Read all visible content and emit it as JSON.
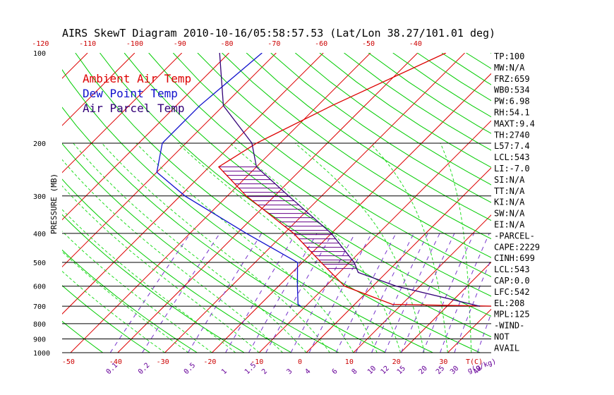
{
  "title": "AIRS SkewT Diagram 2010-10-16/05:58:57.53 (Lat/Lon 38.27/101.01 deg)",
  "colors": {
    "ambient": "#dd0000",
    "dewpoint": "#1010cc",
    "parcel": "#330077",
    "isotherm": "#dd0000",
    "dry_adiabat": "#00cc00",
    "moist_adiabat": "#22dd22",
    "mixing_ratio": "#7733cc",
    "hatch": "#660088",
    "isobar": "#000000"
  },
  "legend": [
    {
      "label": "Ambient Air Temp",
      "color": "#dd0000"
    },
    {
      "label": "Dew Point Temp",
      "color": "#1010cc"
    },
    {
      "label": "Air Parcel Temp",
      "color": "#330077"
    }
  ],
  "chart_data": {
    "type": "line",
    "title": "AIRS SkewT Diagram 2010-10-16/05:58:57.53 (Lat/Lon 38.27/101.01 deg)",
    "ylabel": "PRESSURE (MB)",
    "xlabel": "T(C)",
    "mixing_ratio_unit": "g(g/kg)",
    "pressure_ticks": [
      100,
      200,
      300,
      400,
      500,
      600,
      700,
      800,
      900,
      1000
    ],
    "top_temp_ticks": [
      -120,
      -110,
      -100,
      -90,
      -80,
      -70,
      -60,
      -50,
      -40
    ],
    "bottom_temp_ticks": [
      -50,
      -40,
      -30,
      -20,
      -10,
      0,
      10,
      20,
      30
    ],
    "mixing_ratio_ticks": [
      "0.1",
      "0.2",
      "0.5",
      "1",
      "1.5",
      "2",
      "3",
      "4",
      "6",
      "8",
      "10",
      "12",
      "15",
      "20",
      "25",
      "30",
      "40"
    ],
    "series": [
      {
        "name": "Ambient Air Temp",
        "points": [
          [
            100,
            -34
          ],
          [
            150,
            -47
          ],
          [
            200,
            -55
          ],
          [
            240,
            -58
          ],
          [
            300,
            -46
          ],
          [
            400,
            -28
          ],
          [
            500,
            -16
          ],
          [
            600,
            -6
          ],
          [
            690,
            8
          ],
          [
            700,
            31
          ]
        ]
      },
      {
        "name": "Dew Point Temp",
        "points": [
          [
            100,
            -73
          ],
          [
            150,
            -75
          ],
          [
            200,
            -75
          ],
          [
            250,
            -70
          ],
          [
            300,
            -59
          ],
          [
            400,
            -38
          ],
          [
            500,
            -21
          ],
          [
            600,
            -16
          ],
          [
            690,
            -12
          ],
          [
            700,
            -11
          ]
        ]
      },
      {
        "name": "Air Parcel Temp",
        "points": [
          [
            100,
            -82
          ],
          [
            150,
            -70
          ],
          [
            200,
            -56
          ],
          [
            240,
            -50
          ],
          [
            300,
            -37
          ],
          [
            400,
            -20
          ],
          [
            500,
            -9
          ],
          [
            540,
            -6
          ],
          [
            600,
            5
          ],
          [
            700,
            27
          ]
        ]
      }
    ],
    "indices": [
      "TP:100",
      "MW:N/A",
      "FRZ:659",
      "WB0:534",
      "PW:6.98",
      "RH:54.1",
      "MAXT:9.4",
      "TH:2740",
      "L57:7.4",
      "LCL:543",
      "LI:-7.0",
      "SI:N/A",
      "TT:N/A",
      "KI:N/A",
      "SW:N/A",
      "EI:N/A",
      "-PARCEL-",
      "CAPE:2229",
      "CINH:699",
      "LCL:543",
      "CAP:0.0",
      "LFC:542",
      "EL:208",
      "MPL:125",
      "-WIND-",
      "NOT",
      "AVAIL"
    ]
  }
}
